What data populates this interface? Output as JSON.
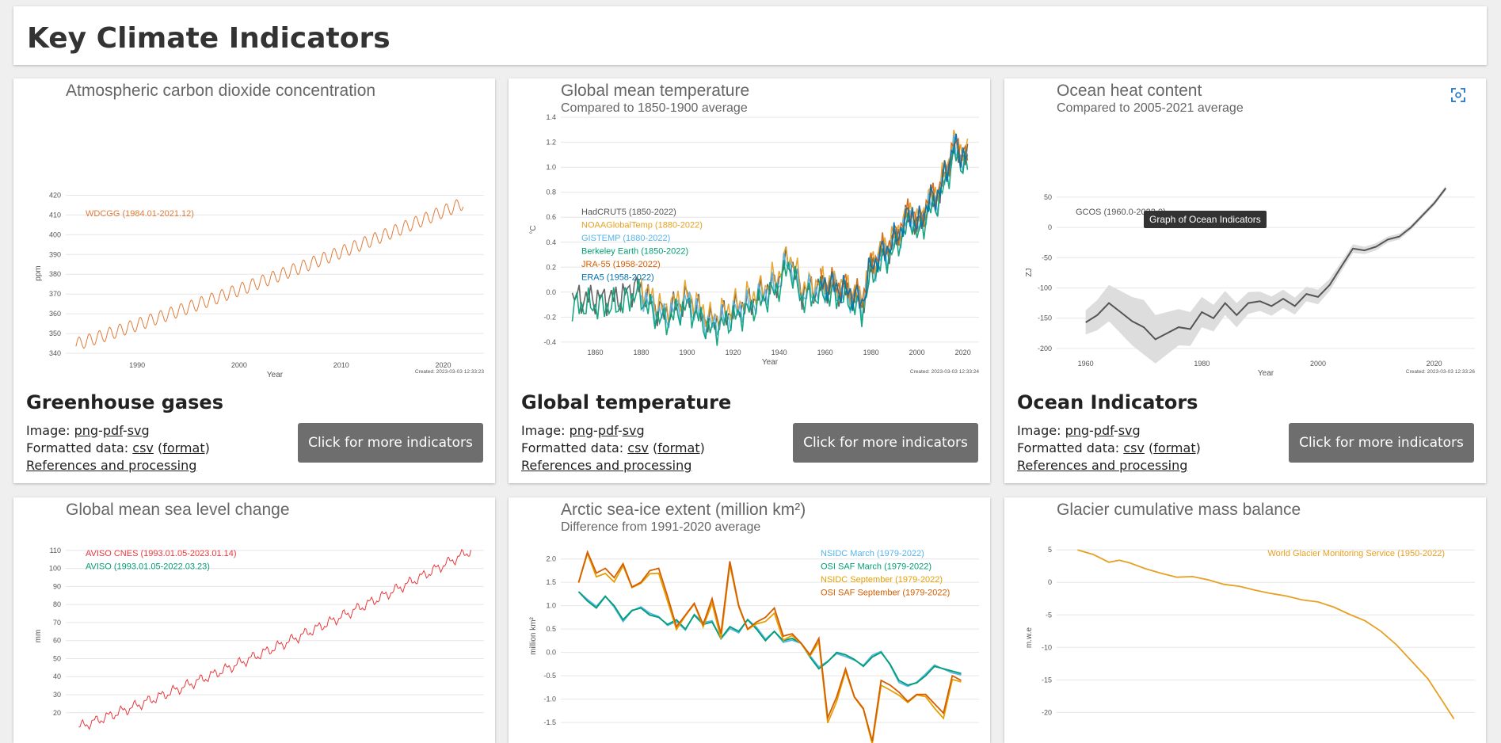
{
  "page": {
    "title": "Key Climate Indicators"
  },
  "common": {
    "image_label": "Image:",
    "png": "png",
    "pdf": "pdf",
    "svg": "svg",
    "sep": "-",
    "data_label": "Formatted data:",
    "csv": "csv",
    "format": "format",
    "refs": "References and processing",
    "more_button": "Click for more indicators"
  },
  "cards": [
    {
      "section": "Greenhouse gases",
      "title": "Atmospheric carbon dioxide concentration",
      "subtitle": "",
      "created": "Created: 2023-03-03 12:33:23"
    },
    {
      "section": "Global temperature",
      "title": "Global mean temperature",
      "subtitle": "Compared to 1850-1900 average",
      "created": "Created: 2023-03-03 12:33:24"
    },
    {
      "section": "Ocean Indicators",
      "title": "Ocean heat content",
      "subtitle": "Compared to 2005-2021 average",
      "created": "Created: 2023-03-03 12:33:26",
      "tooltip": "Graph of Ocean Indicators"
    },
    {
      "title": "Global mean sea level change",
      "subtitle": ""
    },
    {
      "title": "Arctic sea-ice extent (million km²)",
      "subtitle": "Difference from 1991-2020 average"
    },
    {
      "title": "Glacier cumulative mass balance",
      "subtitle": ""
    }
  ],
  "icons": {
    "expand": "fullscreen-expand-icon"
  },
  "chart_data": [
    {
      "type": "line",
      "xlabel": "Year",
      "ylabel": "ppm",
      "xlim": [
        1983,
        2024
      ],
      "ylim": [
        338,
        423
      ],
      "xticks": [
        1990,
        2000,
        2010,
        2020
      ],
      "yticks": [
        340,
        350,
        360,
        370,
        380,
        390,
        400,
        410,
        420
      ],
      "legend": "top-left",
      "grid": true,
      "series": [
        {
          "name": "WDCGG (1984.01-2021.12)",
          "color": "#e07b39",
          "start": 1984.0,
          "end": 2022.0,
          "start_value": 344.5,
          "end_value": 416.0,
          "seasonal_amplitude": 3.2
        }
      ]
    },
    {
      "type": "line",
      "xlabel": "Year",
      "ylabel": "°C",
      "xlim": [
        1845,
        2027
      ],
      "ylim": [
        -0.42,
        1.42
      ],
      "xticks": [
        1860,
        1880,
        1900,
        1920,
        1940,
        1960,
        1980,
        2000,
        2020
      ],
      "yticks": [
        -0.4,
        -0.2,
        0.0,
        0.2,
        0.4,
        0.6,
        0.8,
        1.0,
        1.2,
        1.4
      ],
      "legend": "top-left",
      "grid": true,
      "series": [
        {
          "name": "HadCRUT5 (1850-2022)",
          "color": "#555555"
        },
        {
          "name": "NOAAGlobalTemp (1880-2022)",
          "color": "#e6a023"
        },
        {
          "name": "GISTEMP (1880-2022)",
          "color": "#56b4e9"
        },
        {
          "name": "Berkeley Earth (1850-2022)",
          "color": "#009e73"
        },
        {
          "name": "JRA-55 (1958-2022)",
          "color": "#d55e00"
        },
        {
          "name": "ERA5 (1958-2022)",
          "color": "#0072b2"
        }
      ],
      "x": [
        1850,
        1860,
        1870,
        1878,
        1885,
        1890,
        1900,
        1910,
        1920,
        1930,
        1940,
        1944,
        1950,
        1960,
        1970,
        1976,
        1980,
        1990,
        1998,
        2000,
        2005,
        2010,
        2016,
        2020,
        2022
      ],
      "values": [
        -0.05,
        -0.05,
        -0.05,
        0.05,
        -0.1,
        -0.18,
        -0.05,
        -0.25,
        -0.15,
        -0.05,
        0.1,
        0.28,
        0.0,
        0.05,
        0.0,
        -0.1,
        0.2,
        0.4,
        0.65,
        0.5,
        0.7,
        0.8,
        1.15,
        1.1,
        1.05
      ]
    },
    {
      "type": "line",
      "xlabel": "Year",
      "ylabel": "ZJ",
      "xlim": [
        1955,
        2027
      ],
      "ylim": [
        -212,
        63
      ],
      "xticks": [
        1960,
        1980,
        2000,
        2020
      ],
      "yticks": [
        -200,
        -150,
        -100,
        -50,
        0,
        50
      ],
      "legend": "top-left",
      "grid": true,
      "series": [
        {
          "name": "GCOS (1960.0-2022.0)",
          "color": "#555555",
          "band_color": "#dddddd"
        }
      ],
      "x": [
        1960,
        1962,
        1964,
        1966,
        1968,
        1970,
        1972,
        1974,
        1976,
        1978,
        1980,
        1982,
        1984,
        1986,
        1988,
        1990,
        1992,
        1994,
        1996,
        1998,
        2000,
        2002,
        2004,
        2006,
        2008,
        2010,
        2012,
        2014,
        2016,
        2018,
        2020,
        2022
      ],
      "values": [
        -157,
        -145,
        -125,
        -140,
        -155,
        -165,
        -185,
        -175,
        -165,
        -168,
        -140,
        -150,
        -125,
        -145,
        -125,
        -122,
        -130,
        -118,
        -130,
        -110,
        -115,
        -95,
        -65,
        -35,
        -38,
        -32,
        -20,
        -15,
        0,
        20,
        40,
        65
      ],
      "band_half_width": [
        20,
        25,
        30,
        35,
        40,
        45,
        40,
        35,
        30,
        28,
        25,
        22,
        20,
        20,
        18,
        16,
        16,
        15,
        14,
        12,
        12,
        10,
        8,
        7,
        6,
        6,
        5,
        5,
        4,
        4,
        4,
        4
      ]
    },
    {
      "type": "line",
      "xlabel": "",
      "ylabel": "mm",
      "xlim": [
        1992,
        2024
      ],
      "ylim": [
        12,
        113
      ],
      "yticks": [
        20,
        30,
        40,
        50,
        60,
        70,
        80,
        90,
        100,
        110
      ],
      "legend": "top-left",
      "grid": true,
      "series": [
        {
          "name": "AVISO CNES (1993.01.05-2023.01.14)",
          "color": "#e8393e",
          "start": 1993.0,
          "end": 2023.0,
          "start_value": 12,
          "end_value": 110
        },
        {
          "name": "AVISO (1993.01.05-2022.03.23)",
          "color": "#009e73"
        }
      ]
    },
    {
      "type": "line",
      "xlabel": "",
      "ylabel": "million km²",
      "xlim": [
        1977,
        2024
      ],
      "ylim": [
        -1.6,
        2.3
      ],
      "yticks": [
        -1.5,
        -1.0,
        -0.5,
        0.0,
        0.5,
        1.0,
        1.5,
        2.0
      ],
      "legend": "top-right",
      "grid": true,
      "series": [
        {
          "name": "NSIDC March (1979-2022)",
          "color": "#56b4e9"
        },
        {
          "name": "OSI SAF March (1979-2022)",
          "color": "#009e73"
        },
        {
          "name": "NSIDC September (1979-2022)",
          "color": "#e69f00"
        },
        {
          "name": "OSI SAF September (1979-2022)",
          "color": "#d55e00"
        }
      ],
      "x": [
        1979,
        1980,
        1981,
        1982,
        1983,
        1984,
        1985,
        1986,
        1987,
        1988,
        1989,
        1990,
        1991,
        1992,
        1993,
        1994,
        1995,
        1996,
        1997,
        1998,
        1999,
        2000,
        2001,
        2002,
        2003,
        2004,
        2005,
        2006,
        2007,
        2008,
        2009,
        2010,
        2011,
        2012,
        2013,
        2014,
        2015,
        2016,
        2017,
        2018,
        2019,
        2020,
        2021,
        2022
      ],
      "march": [
        1.3,
        1.1,
        0.95,
        1.2,
        1.0,
        0.7,
        0.9,
        0.95,
        0.8,
        0.75,
        0.6,
        0.7,
        0.5,
        0.8,
        0.6,
        0.65,
        0.3,
        0.55,
        0.45,
        0.7,
        0.5,
        0.25,
        0.45,
        0.25,
        0.3,
        0.2,
        -0.1,
        -0.35,
        -0.2,
        0.0,
        -0.05,
        -0.15,
        -0.3,
        -0.1,
        0.0,
        -0.25,
        -0.6,
        -0.7,
        -0.65,
        -0.5,
        -0.3,
        -0.35,
        -0.4,
        -0.45
      ],
      "september": [
        1.5,
        2.15,
        1.7,
        1.8,
        1.6,
        1.9,
        1.4,
        1.5,
        1.75,
        1.8,
        1.2,
        0.55,
        0.8,
        1.05,
        0.6,
        1.15,
        0.4,
        1.95,
        1.0,
        0.5,
        0.65,
        0.75,
        0.95,
        0.35,
        0.4,
        0.2,
        -0.05,
        0.3,
        -1.4,
        -0.95,
        -0.35,
        -0.95,
        -1.2,
        -1.9,
        -0.6,
        -0.7,
        -0.85,
        -1.05,
        -0.9,
        -0.9,
        -1.1,
        -1.3,
        -0.5,
        -0.6
      ]
    },
    {
      "type": "line",
      "xlabel": "",
      "ylabel": "m.w.e",
      "xlim": [
        1946,
        2026
      ],
      "ylim": [
        -23,
        6
      ],
      "yticks": [
        5,
        0,
        -5,
        -10,
        -15,
        -20
      ],
      "legend": "top-right",
      "grid": true,
      "series": [
        {
          "name": "World Glacier Monitoring Service (1950-2022)",
          "color": "#e6a023"
        }
      ],
      "x": [
        1950,
        1953,
        1956,
        1958,
        1960,
        1963,
        1966,
        1969,
        1972,
        1975,
        1978,
        1981,
        1984,
        1987,
        1990,
        1993,
        1996,
        1999,
        2002,
        2005,
        2008,
        2011,
        2014,
        2017,
        2020,
        2022
      ],
      "values": [
        5,
        4.3,
        3.1,
        3.4,
        3.0,
        2.1,
        1.4,
        0.8,
        0.9,
        0.4,
        -0.3,
        -0.6,
        -1.2,
        -1.7,
        -2.1,
        -2.7,
        -3.0,
        -3.8,
        -4.9,
        -5.9,
        -7.5,
        -9.6,
        -12.2,
        -14.8,
        -18.5,
        -21.0
      ]
    }
  ]
}
